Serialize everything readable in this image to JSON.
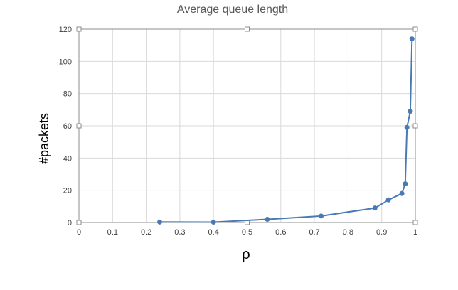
{
  "chart_data": {
    "type": "line",
    "title": "Average queue length",
    "xlabel": "ρ",
    "ylabel": "#packets",
    "xlim": [
      0,
      1
    ],
    "ylim": [
      0,
      120
    ],
    "x_ticks": [
      "0",
      "0.1",
      "0.2",
      "0.3",
      "0.4",
      "0.5",
      "0.6",
      "0.7",
      "0.8",
      "0.9",
      "1"
    ],
    "y_ticks": [
      "0",
      "20",
      "40",
      "60",
      "80",
      "100",
      "120"
    ],
    "grid": true,
    "legend": "none",
    "series": [
      {
        "color": "#4a7ab5",
        "x": [
          0.24,
          0.4,
          0.56,
          0.72,
          0.88,
          0.92,
          0.96,
          0.97,
          0.975,
          0.985,
          0.99
        ],
        "y": [
          0.3,
          0.2,
          2,
          4,
          9,
          14,
          18,
          24,
          59,
          69,
          114
        ]
      }
    ]
  }
}
